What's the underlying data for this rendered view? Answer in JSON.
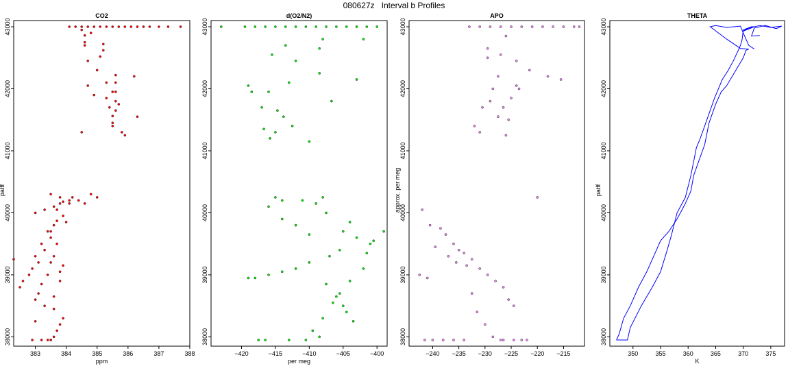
{
  "figure_title": "080627z   Interval b Profiles",
  "chart_data": [
    {
      "type": "scatter",
      "title": "CO2",
      "xlabel": "ppm",
      "ylabel": "patff",
      "xlim": [
        382.3,
        388.0
      ],
      "ylim": [
        37850,
        43100
      ],
      "xticks": [
        383,
        384,
        385,
        386,
        387,
        388
      ],
      "yticks": [
        38000,
        39000,
        40000,
        41000,
        42000,
        43000
      ],
      "grid": false,
      "color": "#ff0000",
      "series": [
        {
          "x": [
            384.1,
            384.3,
            384.5,
            384.7,
            384.9,
            385.1,
            385.3,
            385.5,
            385.7,
            385.9,
            386.1,
            386.3,
            386.5,
            386.7,
            387.0,
            387.3,
            387.7,
            384.6,
            384.6,
            384.6,
            385.2,
            385.2,
            385.1,
            384.5,
            384.7,
            385.0,
            385.6,
            385.6,
            385.6,
            385.6,
            385.6,
            385.5,
            385.5,
            385.5,
            384.7,
            385.3,
            385.7,
            386.2,
            385.8,
            386.3,
            385.5,
            385.4,
            384.5,
            385.9,
            384.8,
            384.9,
            385.3,
            384.1,
            383.9,
            383.8,
            383.6,
            383.7,
            383.9,
            383.7,
            383.6,
            383.4,
            383.5,
            383.2,
            383.3,
            383.0,
            383.1,
            382.9,
            382.8,
            382.6,
            382.5,
            382.3,
            383.0,
            383.3,
            383.5,
            383.7,
            383.6,
            383.5,
            383.8,
            383.4,
            383.2,
            383.1,
            383.0,
            383.3,
            383.6,
            383.9,
            383.8,
            383.7,
            383.6,
            383.5,
            383.5,
            383.4,
            383.2,
            382.9,
            383.0,
            383.6,
            383.8,
            383.9,
            384.0,
            384.1,
            383.5,
            383.8,
            384.2,
            384.4,
            384.6,
            384.8,
            385.0
          ],
          "y": [
            43000,
            43000,
            43000,
            43000,
            43000,
            43000,
            43000,
            43000,
            43000,
            43000,
            43000,
            43000,
            43000,
            43000,
            43000,
            43000,
            43000,
            42860,
            42750,
            42700,
            42720,
            42620,
            42520,
            42950,
            42450,
            42300,
            42220,
            42100,
            41950,
            41800,
            41650,
            41560,
            41450,
            41400,
            42050,
            41850,
            41750,
            42200,
            41300,
            41550,
            41950,
            41700,
            41300,
            41250,
            42900,
            41900,
            42100,
            40200,
            40180,
            40150,
            40100,
            40050,
            39950,
            39870,
            39800,
            39700,
            39600,
            39500,
            39400,
            39300,
            39200,
            39100,
            39000,
            38900,
            38800,
            39250,
            40000,
            40050,
            39700,
            39500,
            39300,
            39200,
            39050,
            39000,
            38850,
            38700,
            38600,
            38500,
            38450,
            38300,
            38200,
            38100,
            38000,
            37950,
            37950,
            37950,
            37950,
            37950,
            38250,
            38650,
            38900,
            39150,
            39850,
            40150,
            40300,
            40250,
            40250,
            40200,
            40150,
            40300,
            40250
          ]
        }
      ]
    },
    {
      "type": "scatter",
      "title": "d(O2/N2)",
      "xlabel": "per meg",
      "ylabel": "",
      "xlim": [
        -424.5,
        -398.5
      ],
      "ylim": [
        37850,
        43100
      ],
      "xticks": [
        -420,
        -415,
        -410,
        -405,
        -400
      ],
      "yticks": [
        38000,
        39000,
        40000,
        41000,
        42000,
        43000
      ],
      "grid": false,
      "color": "#00ee00",
      "series": [
        {
          "x": [
            -419.5,
            -418,
            -416.5,
            -415,
            -413.5,
            -412,
            -410.5,
            -409,
            -407.5,
            -406,
            -404.5,
            -403,
            -401.5,
            -400,
            -423,
            -413.5,
            -412,
            -408,
            -408.5,
            -415.5,
            -413.8,
            -417,
            -419,
            -418.5,
            -416.7,
            -415.8,
            -415,
            -416,
            -414.7,
            -412.5,
            -410,
            -406.7,
            -403,
            -402,
            -413,
            -408.5,
            -414,
            -416,
            -415,
            -411,
            -409,
            -408,
            -407.5,
            -405,
            -403,
            -401,
            -399,
            -404,
            -405.5,
            -407,
            -410,
            -412,
            -414,
            -416,
            -418,
            -419,
            -407.5,
            -406,
            -405,
            -404.5,
            -403.5,
            -408.5,
            -410.5,
            -413,
            -416.5,
            -417.5,
            -409.5,
            -408,
            -406.5,
            -405.5,
            -404,
            -402,
            -401.5,
            -400.5,
            -410,
            -412,
            -414
          ],
          "y": [
            43000,
            43000,
            43000,
            43000,
            43000,
            43000,
            43000,
            43000,
            43000,
            43000,
            43000,
            43000,
            43000,
            43000,
            43000,
            42700,
            42450,
            42800,
            42250,
            42550,
            41550,
            41700,
            42050,
            41950,
            41350,
            41200,
            41300,
            41950,
            41650,
            41400,
            41150,
            41800,
            42150,
            42800,
            42100,
            42650,
            40200,
            40100,
            40250,
            40200,
            40150,
            40250,
            40000,
            39700,
            39600,
            39500,
            39700,
            39850,
            39400,
            39300,
            39200,
            39100,
            39050,
            39000,
            38950,
            38950,
            38850,
            38650,
            38500,
            38400,
            38250,
            38000,
            37950,
            37950,
            37950,
            37950,
            38100,
            38300,
            38550,
            38700,
            38900,
            39100,
            39350,
            39550,
            39650,
            39800,
            39900
          ]
        }
      ]
    },
    {
      "type": "scatter",
      "title": "APO",
      "xlabel": "",
      "ylabel": "approx. per meg",
      "xlim": [
        -244.5,
        -211.0
      ],
      "ylim": [
        37850,
        43100
      ],
      "xticks": [
        -240,
        -235,
        -230,
        -225,
        -220,
        -215
      ],
      "yticks": [
        38000,
        39000,
        40000,
        41000,
        42000,
        43000
      ],
      "grid": false,
      "color": "#ee82ee",
      "series": [
        {
          "x": [
            -233,
            -231,
            -229,
            -227,
            -225,
            -223,
            -221,
            -219,
            -217,
            -215,
            -213,
            -212,
            -226,
            -229.5,
            -227,
            -224,
            -221.5,
            -223.5,
            -225,
            -226.5,
            -227.5,
            -228.5,
            -229,
            -230.5,
            -231,
            -218,
            -215.5,
            -232,
            -229.5,
            -227.5,
            -225.5,
            -224,
            -226,
            -242,
            -240.5,
            -238.5,
            -237.5,
            -236,
            -235,
            -234,
            -232.5,
            -231,
            -229.5,
            -228,
            -226.5,
            -225.5,
            -224.5,
            -220,
            -242.5,
            -241,
            -239.5,
            -237,
            -235.5,
            -233.5,
            -232.5,
            -231.5,
            -230,
            -228.5,
            -227,
            -222,
            -223,
            -224.5,
            -226.5,
            -234,
            -236,
            -238,
            -240,
            -241.5
          ],
          "y": [
            43000,
            43000,
            43000,
            43000,
            43000,
            43000,
            43000,
            43000,
            43000,
            43000,
            43000,
            43000,
            42850,
            42650,
            42550,
            42450,
            42300,
            42000,
            41850,
            41700,
            41550,
            42000,
            41800,
            41700,
            41300,
            42200,
            42150,
            41400,
            42500,
            42200,
            41500,
            42050,
            41250,
            40050,
            39800,
            39750,
            39650,
            39500,
            39400,
            39350,
            39250,
            39100,
            39000,
            38900,
            38800,
            38600,
            38500,
            40250,
            39000,
            38950,
            39450,
            39300,
            39200,
            39150,
            38700,
            38400,
            38200,
            38000,
            37950,
            37950,
            37950,
            37950,
            37950,
            37950,
            37950,
            37950,
            37950,
            37950
          ]
        }
      ]
    },
    {
      "type": "line",
      "title": "THETA",
      "xlabel": "K",
      "ylabel": "patff",
      "xlim": [
        345.8,
        377.5
      ],
      "ylim": [
        37850,
        43100
      ],
      "xticks": [
        350,
        355,
        360,
        365,
        370,
        375
      ],
      "yticks": [
        38000,
        39000,
        40000,
        41000,
        42000,
        43000
      ],
      "grid": false,
      "color": "#0000ff",
      "series": [
        {
          "name": "",
          "x": [
            347.0,
            349.0,
            349.5,
            351.5,
            353.5,
            355.0,
            356.2,
            357.0,
            358.0,
            359.5,
            360.5,
            361.5,
            362.2,
            363.0,
            364.0,
            364.8,
            366.2,
            367.3,
            368.2,
            369.0,
            369.5,
            369.8,
            370.0,
            371.5,
            372.0,
            370.0,
            371.0,
            373.0,
            375.0,
            377.0,
            376.0,
            374.0,
            372.0,
            371.5,
            373.0
          ],
          "y": [
            37950,
            37950,
            38150,
            38500,
            38800,
            39050,
            39400,
            39650,
            40000,
            40250,
            40600,
            41050,
            41200,
            41400,
            41650,
            41850,
            42150,
            42300,
            42450,
            42600,
            42700,
            42800,
            42950,
            43000,
            43000,
            42930,
            42980,
            43020,
            42990,
            43010,
            42970,
            43020,
            42980,
            42850,
            42860
          ]
        },
        {
          "name": "",
          "x": [
            347.0,
            347.5,
            348.3,
            349.5,
            351.0,
            352.5,
            354.0,
            355.0,
            356.5,
            358.0,
            359.5,
            360.5,
            361.0,
            362.0,
            363.0,
            363.8,
            364.2,
            365.0,
            366.0,
            367.0,
            368.0,
            369.0,
            370.0,
            370.5,
            371.0,
            369.5,
            367.0,
            364.0,
            365.0,
            367.0,
            369.5,
            370.0,
            371.0,
            372.0
          ],
          "y": [
            37950,
            38050,
            38300,
            38500,
            38800,
            39050,
            39350,
            39550,
            39700,
            39900,
            40150,
            40350,
            40600,
            40850,
            41100,
            41450,
            41550,
            41750,
            41950,
            42050,
            42200,
            42350,
            42500,
            42620,
            42640,
            42650,
            42800,
            43000,
            43020,
            42990,
            43010,
            42900,
            42700,
            42640
          ]
        }
      ]
    }
  ]
}
